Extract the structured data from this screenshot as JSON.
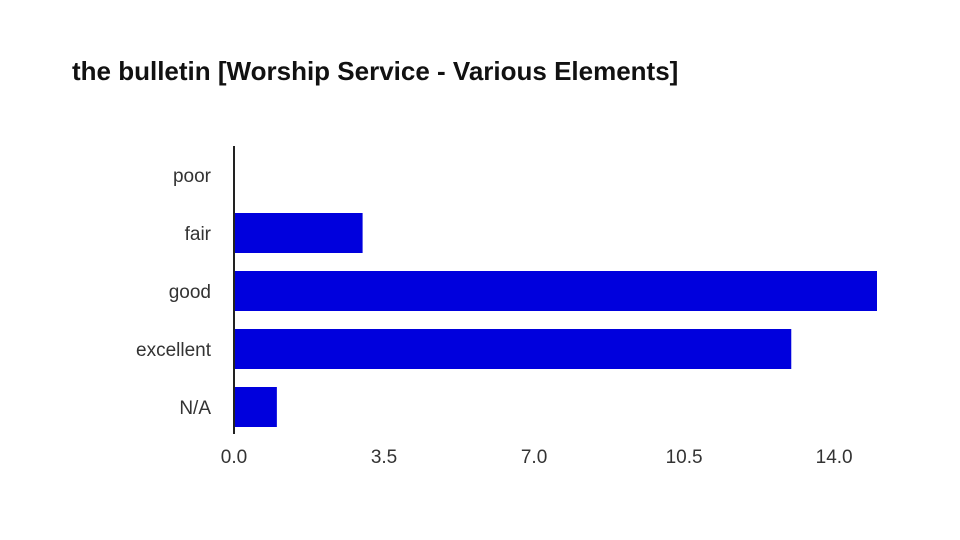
{
  "chart_data": {
    "type": "bar",
    "orientation": "horizontal",
    "title": "the bulletin [Worship Service - Various Elements]",
    "categories": [
      "poor",
      "fair",
      "good",
      "excellent",
      "N/A"
    ],
    "values": [
      0,
      3,
      15,
      13,
      1
    ],
    "xlim": [
      0,
      15
    ],
    "xticks": [
      "0.0",
      "3.5",
      "7.0",
      "10.5",
      "14.0"
    ],
    "xtick_values": [
      0,
      3.5,
      7.0,
      10.5,
      14.0
    ],
    "xlabel": "",
    "ylabel": "",
    "grid": false,
    "bar_color": "#0000dd",
    "axis_color": "#222222"
  }
}
